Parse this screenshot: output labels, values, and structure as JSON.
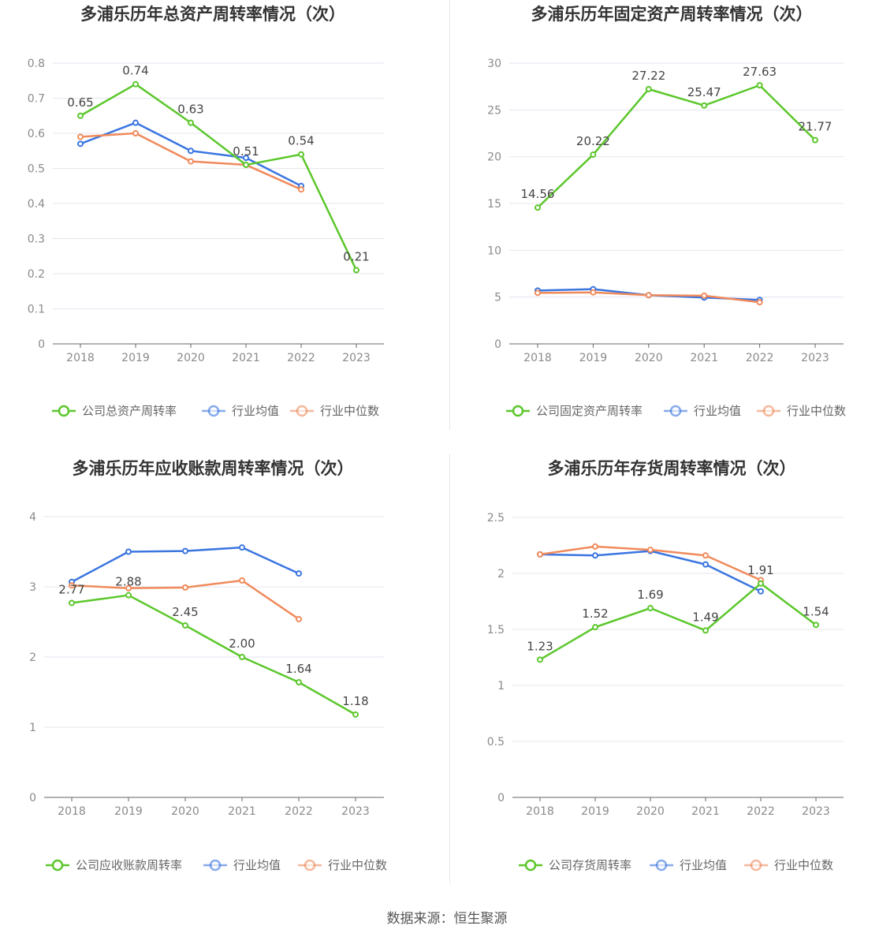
{
  "source_text": "数据来源：恒生聚源",
  "colors": {
    "company": "#5cc72c",
    "avg": "#3a75e0",
    "median": "#f08a5b",
    "grid": "#e4e6ef",
    "axis": "#666666"
  },
  "chart_data": [
    {
      "type": "line",
      "title": "多浦乐历年总资产周转率情况（次）",
      "categories": [
        "2018",
        "2019",
        "2020",
        "2021",
        "2022",
        "2023"
      ],
      "y_ticks": [
        "0",
        "0.1",
        "0.2",
        "0.3",
        "0.4",
        "0.5",
        "0.6",
        "0.7",
        "0.8"
      ],
      "ylim": [
        0,
        0.8
      ],
      "grid": true,
      "legend_position": "bottom",
      "series": [
        {
          "name": "公司总资产周转率",
          "role": "company",
          "values": [
            0.65,
            0.74,
            0.63,
            0.51,
            0.54,
            0.21
          ],
          "labels": [
            "0.65",
            "0.74",
            "0.63",
            "0.51",
            "0.54",
            "0.21"
          ]
        },
        {
          "name": "行业均值",
          "role": "avg",
          "values": [
            0.57,
            0.63,
            0.55,
            0.53,
            0.45,
            null
          ]
        },
        {
          "name": "行业中位数",
          "role": "median",
          "values": [
            0.59,
            0.6,
            0.52,
            0.51,
            0.44,
            null
          ]
        }
      ]
    },
    {
      "type": "line",
      "title": "多浦乐历年固定资产周转率情况（次）",
      "categories": [
        "2018",
        "2019",
        "2020",
        "2021",
        "2022",
        "2023"
      ],
      "y_ticks": [
        "0",
        "5",
        "10",
        "15",
        "20",
        "25",
        "30"
      ],
      "ylim": [
        0,
        30
      ],
      "grid": true,
      "legend_position": "bottom",
      "series": [
        {
          "name": "公司固定资产周转率",
          "role": "company",
          "values": [
            14.56,
            20.22,
            27.22,
            25.47,
            27.63,
            21.77
          ],
          "labels": [
            "14.56",
            "20.22",
            "27.22",
            "25.47",
            "27.63",
            "21.77"
          ]
        },
        {
          "name": "行业均值",
          "role": "avg",
          "values": [
            5.7,
            5.85,
            5.2,
            4.95,
            4.7,
            null
          ]
        },
        {
          "name": "行业中位数",
          "role": "median",
          "values": [
            5.45,
            5.5,
            5.2,
            5.15,
            4.45,
            null
          ]
        }
      ]
    },
    {
      "type": "line",
      "title": "多浦乐历年应收账款周转率情况（次）",
      "categories": [
        "2018",
        "2019",
        "2020",
        "2021",
        "2022",
        "2023"
      ],
      "y_ticks": [
        "0",
        "1",
        "2",
        "3",
        "4"
      ],
      "ylim": [
        0,
        4
      ],
      "grid": true,
      "legend_position": "bottom",
      "series": [
        {
          "name": "公司应收账款周转率",
          "role": "company",
          "values": [
            2.77,
            2.88,
            2.45,
            2.0,
            1.64,
            1.18
          ],
          "labels": [
            "2.77",
            "2.88",
            "2.45",
            "2.00",
            "1.64",
            "1.18"
          ]
        },
        {
          "name": "行业均值",
          "role": "avg",
          "values": [
            3.07,
            3.5,
            3.51,
            3.56,
            3.19,
            null
          ]
        },
        {
          "name": "行业中位数",
          "role": "median",
          "values": [
            3.02,
            2.98,
            2.99,
            3.09,
            2.54,
            null
          ]
        }
      ]
    },
    {
      "type": "line",
      "title": "多浦乐历年存货周转率情况（次）",
      "categories": [
        "2018",
        "2019",
        "2020",
        "2021",
        "2022",
        "2023"
      ],
      "y_ticks": [
        "0",
        "0.5",
        "1",
        "1.5",
        "2",
        "2.5"
      ],
      "ylim": [
        0,
        2.5
      ],
      "grid": true,
      "legend_position": "bottom",
      "series": [
        {
          "name": "公司存货周转率",
          "role": "company",
          "values": [
            1.23,
            1.52,
            1.69,
            1.49,
            1.91,
            1.54
          ],
          "labels": [
            "1.23",
            "1.52",
            "1.69",
            "1.49",
            "1.91",
            "1.54"
          ]
        },
        {
          "name": "行业均值",
          "role": "avg",
          "values": [
            2.17,
            2.16,
            2.2,
            2.08,
            1.84,
            null
          ]
        },
        {
          "name": "行业中位数",
          "role": "median",
          "values": [
            2.17,
            2.24,
            2.21,
            2.16,
            1.94,
            null
          ]
        }
      ]
    }
  ]
}
